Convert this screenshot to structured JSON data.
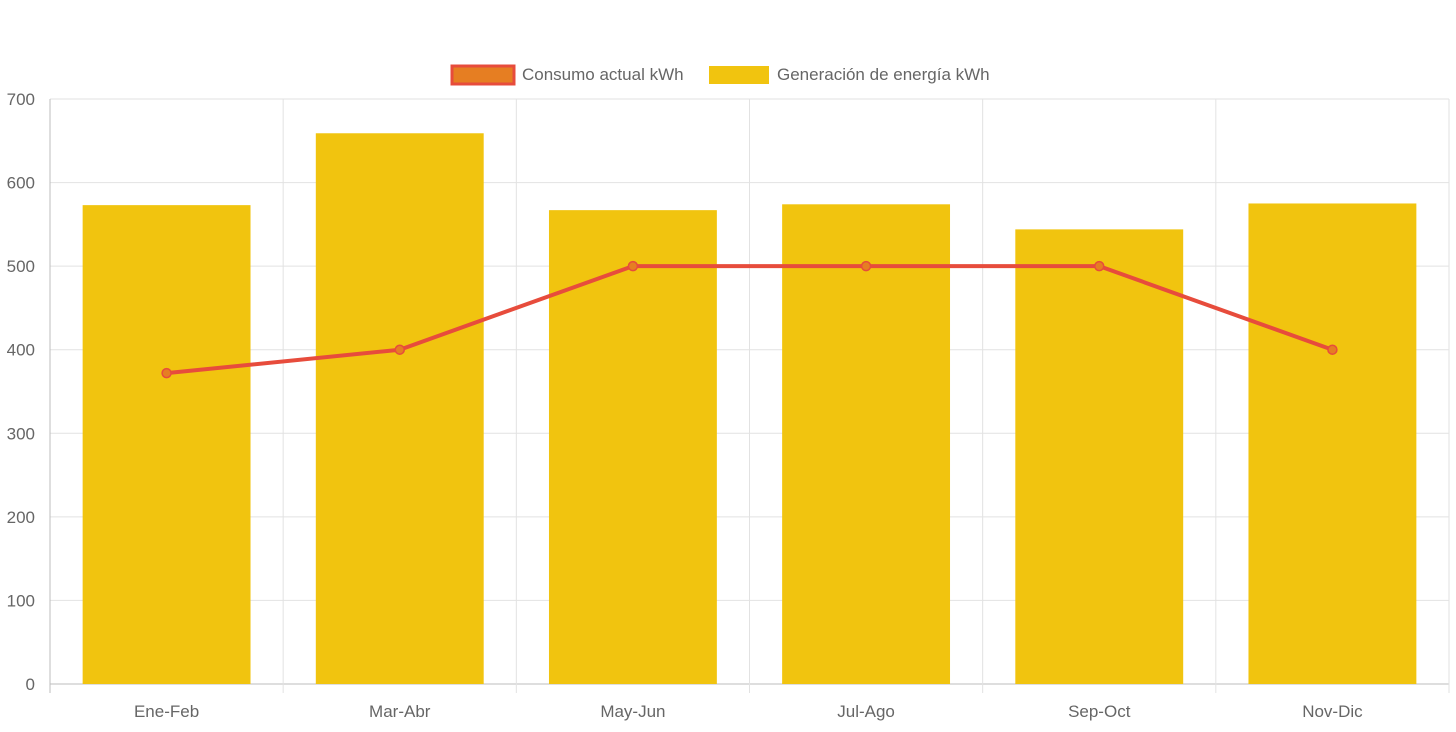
{
  "chart_data": {
    "type": "bar",
    "title": "",
    "xlabel": "",
    "ylabel": "",
    "categories": [
      "Ene-Feb",
      "Mar-Abr",
      "May-Jun",
      "Jul-Ago",
      "Sep-Oct",
      "Nov-Dic"
    ],
    "ylim": [
      0,
      700
    ],
    "yticks": [
      0,
      100,
      200,
      300,
      400,
      500,
      600,
      700
    ],
    "grid": true,
    "legend_position": "top-center",
    "series": [
      {
        "name": "Consumo actual kWh",
        "type": "line",
        "color": "#e74c3c",
        "legend_fill": "#e67e22",
        "values": [
          372,
          400,
          500,
          500,
          500,
          400
        ]
      },
      {
        "name": "Generación de energía kWh",
        "type": "bar",
        "color": "#f1c40f",
        "values": [
          573,
          659,
          567,
          574,
          544,
          575
        ]
      }
    ]
  }
}
